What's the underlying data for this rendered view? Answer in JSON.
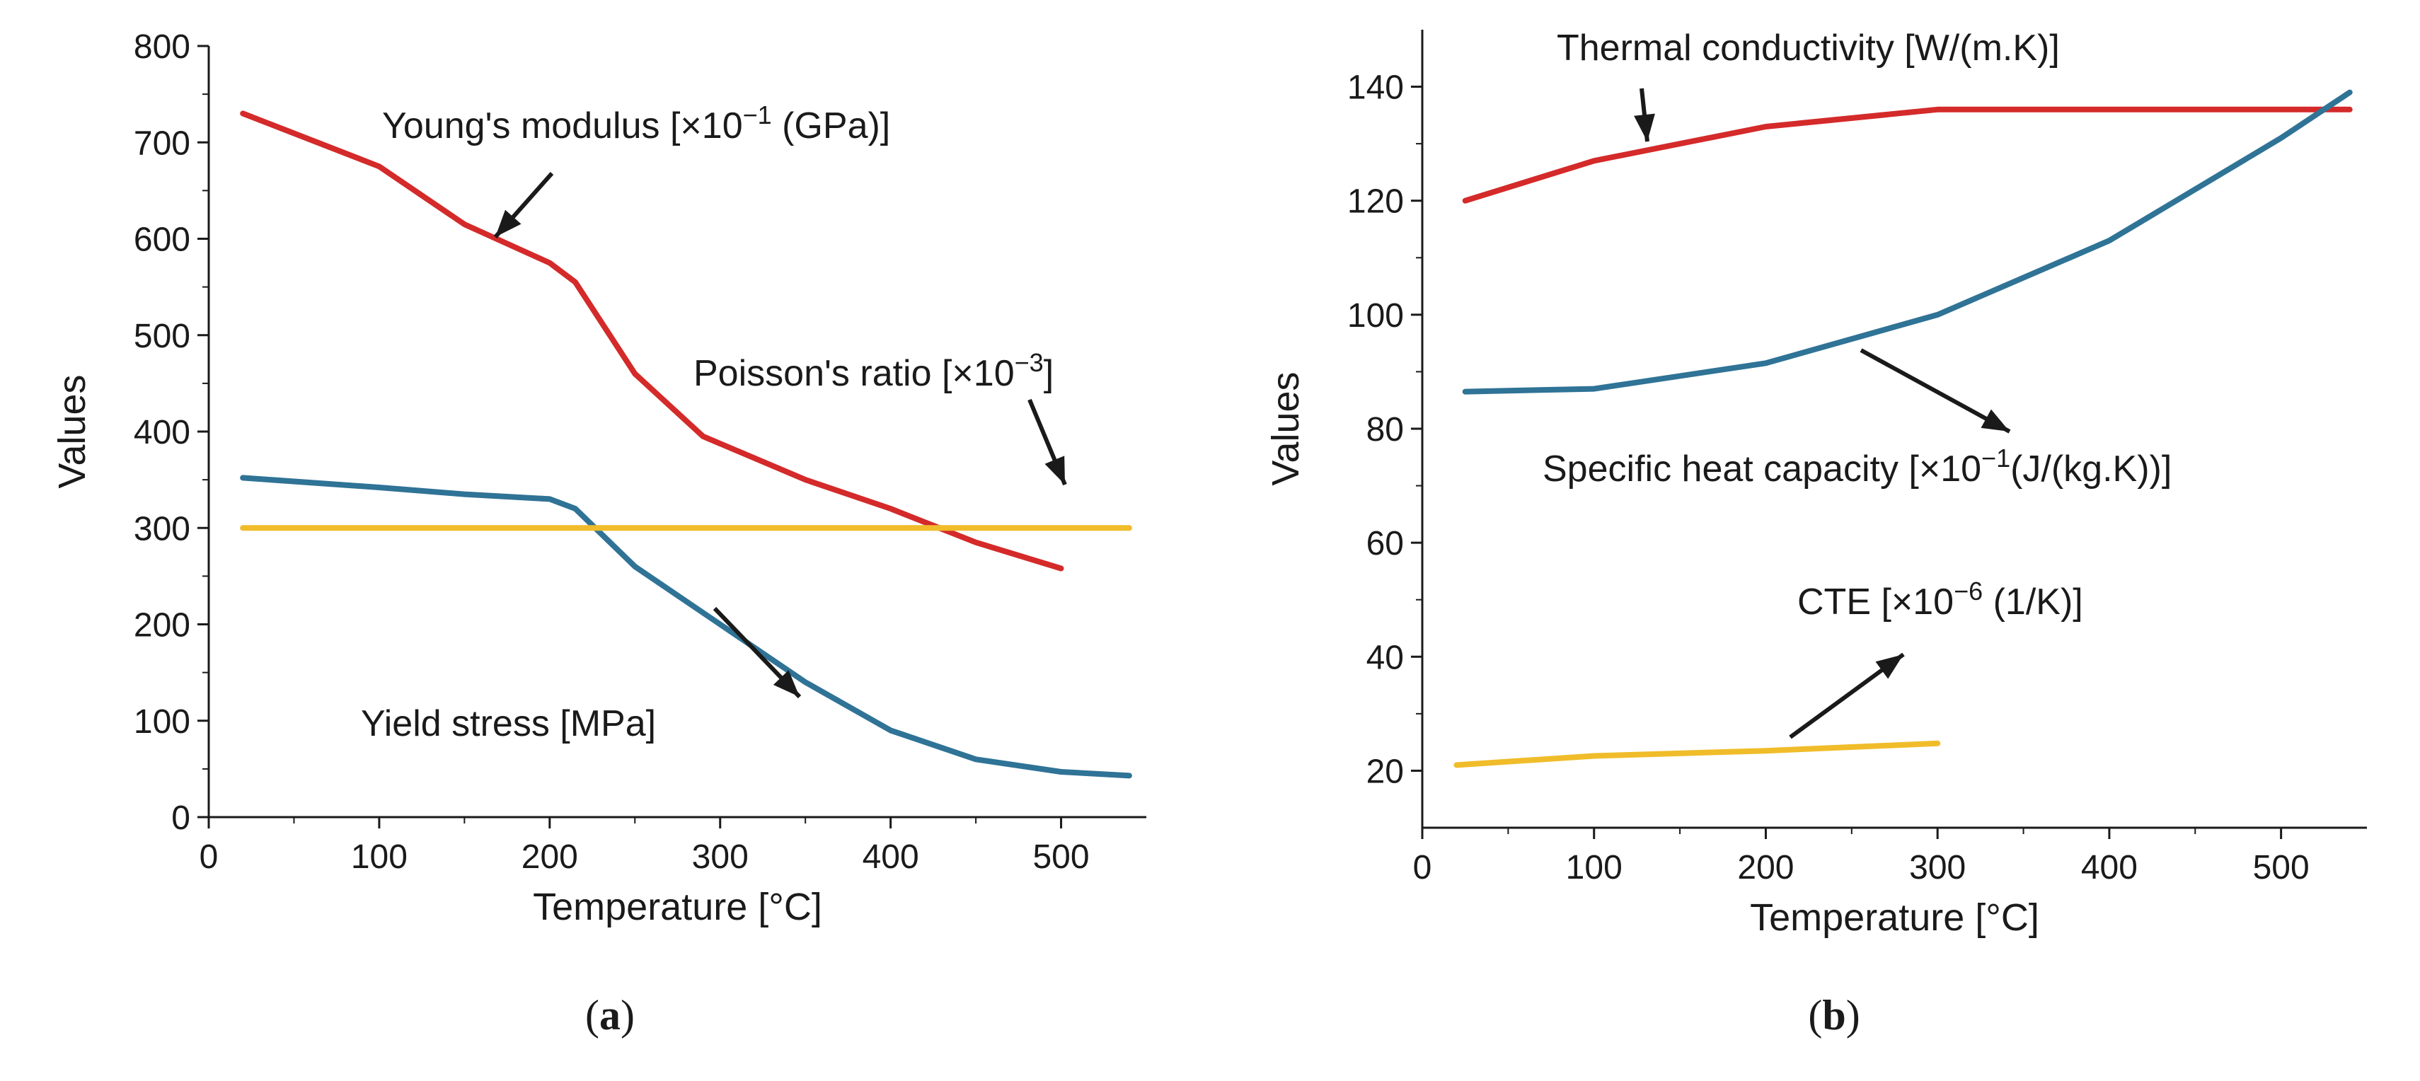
{
  "colors": {
    "red": "#d42a2a",
    "blue": "#2f7396",
    "yellow": "#f0bc2a",
    "ink": "#1a1a1a"
  },
  "chart_data": [
    {
      "panel": "(a)",
      "type": "line",
      "xlabel": "Temperature [°C]",
      "ylabel": "Values",
      "xlim": [
        0,
        550
      ],
      "ylim": [
        0,
        800
      ],
      "x_ticks": [
        0,
        100,
        200,
        300,
        400,
        500
      ],
      "y_ticks": [
        0,
        100,
        200,
        300,
        400,
        500,
        600,
        700,
        800
      ],
      "grid": false,
      "series": [
        {
          "name": "Young's modulus [×10⁻¹ (GPa)]",
          "color": "#d42a2a",
          "x": [
            20,
            100,
            150,
            200,
            215,
            250,
            290,
            350,
            400,
            450,
            500
          ],
          "y": [
            730,
            675,
            615,
            575,
            555,
            460,
            395,
            350,
            320,
            285,
            258
          ]
        },
        {
          "name": "Yield stress [MPa]",
          "color": "#2f7396",
          "x": [
            20,
            100,
            150,
            200,
            215,
            250,
            300,
            350,
            400,
            450,
            500,
            540
          ],
          "y": [
            352,
            342,
            335,
            330,
            320,
            260,
            200,
            140,
            90,
            60,
            47,
            43
          ]
        },
        {
          "name": "Poisson's ratio [×10⁻³]",
          "color": "#f0bc2a",
          "x": [
            20,
            540
          ],
          "y": [
            300,
            300
          ]
        }
      ],
      "annotations": [
        {
          "pre": "Young's modulus [×10",
          "sup": "−1",
          "post": " (GPa)]"
        },
        {
          "pre": "Poisson's ratio [×10",
          "sup": "−3",
          "post": "]"
        },
        {
          "pre": "Yield stress [MPa]",
          "sup": "",
          "post": ""
        }
      ]
    },
    {
      "panel": "(b)",
      "type": "line",
      "xlabel": "Temperature [°C]",
      "ylabel": "Values",
      "xlim": [
        0,
        550
      ],
      "ylim": [
        10,
        150
      ],
      "x_ticks": [
        0,
        100,
        200,
        300,
        400,
        500
      ],
      "y_ticks": [
        20,
        40,
        60,
        80,
        100,
        120,
        140
      ],
      "grid": false,
      "series": [
        {
          "name": "Thermal conductivity [W/(m.K)]",
          "color": "#d42a2a",
          "x": [
            25,
            100,
            200,
            300,
            400,
            500,
            540
          ],
          "y": [
            120,
            127,
            133,
            136,
            136,
            136,
            136
          ]
        },
        {
          "name": "Specific heat capacity [×10⁻¹(J/(kg.K))]",
          "color": "#2f7396",
          "x": [
            25,
            100,
            200,
            300,
            400,
            500,
            540
          ],
          "y": [
            86.5,
            87,
            91.5,
            100,
            113,
            131,
            139
          ]
        },
        {
          "name": "CTE [×10⁻⁶ (1/K)]",
          "color": "#f0bc2a",
          "x": [
            20,
            100,
            200,
            300
          ],
          "y": [
            21,
            22.6,
            23.5,
            24.8
          ]
        }
      ],
      "annotations": [
        {
          "pre": "Thermal conductivity [W/(m.K)]",
          "sup": "",
          "post": ""
        },
        {
          "pre": "Specific heat capacity [×10",
          "sup": "−1",
          "post": "(J/(kg.K))]"
        },
        {
          "pre": "CTE [×10",
          "sup": "−6",
          "post": " (1/K)]"
        }
      ]
    }
  ]
}
